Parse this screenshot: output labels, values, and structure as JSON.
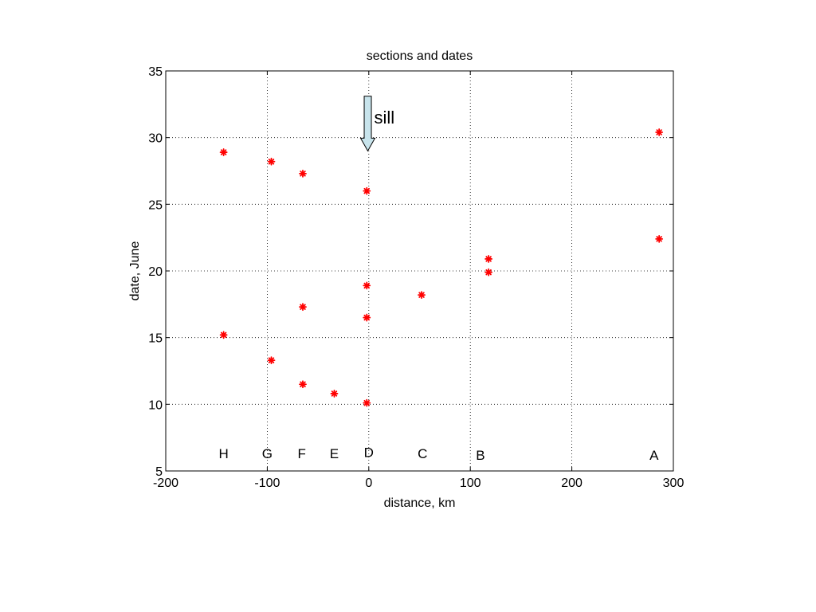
{
  "chart_data": {
    "type": "scatter",
    "title": "sections and dates",
    "xlabel": "distance, km",
    "ylabel": "date, June",
    "xlim": [
      -200,
      300
    ],
    "ylim": [
      5,
      35
    ],
    "x_ticks": [
      -200,
      -100,
      0,
      100,
      200,
      300
    ],
    "y_ticks": [
      5,
      10,
      15,
      20,
      25,
      30,
      35
    ],
    "x_tick_labels": [
      "-200",
      "-100",
      "0",
      "100",
      "200",
      "300"
    ],
    "y_tick_labels": [
      "5",
      "10",
      "15",
      "20",
      "25",
      "30",
      "35"
    ],
    "grid": true,
    "marker": "asterisk",
    "marker_color": "#ff0000",
    "points": [
      {
        "x": -143,
        "y": 28.9
      },
      {
        "x": -143,
        "y": 15.2
      },
      {
        "x": -96,
        "y": 28.2
      },
      {
        "x": -96,
        "y": 13.3
      },
      {
        "x": -65,
        "y": 27.3
      },
      {
        "x": -65,
        "y": 17.3
      },
      {
        "x": -65,
        "y": 11.5
      },
      {
        "x": -34,
        "y": 10.8
      },
      {
        "x": -2,
        "y": 26.0
      },
      {
        "x": -2,
        "y": 18.9
      },
      {
        "x": -2,
        "y": 16.5
      },
      {
        "x": -2,
        "y": 10.1
      },
      {
        "x": 52,
        "y": 18.2
      },
      {
        "x": 118,
        "y": 20.9
      },
      {
        "x": 118,
        "y": 19.9
      },
      {
        "x": 286,
        "y": 30.4
      },
      {
        "x": 286,
        "y": 22.4
      }
    ],
    "section_labels": [
      {
        "text": "H",
        "x": -143,
        "y": 6.3
      },
      {
        "text": "G",
        "x": -100,
        "y": 6.3
      },
      {
        "text": "F",
        "x": -66,
        "y": 6.3
      },
      {
        "text": "E",
        "x": -34,
        "y": 6.3
      },
      {
        "text": "D",
        "x": 0,
        "y": 6.4
      },
      {
        "text": "C",
        "x": 53,
        "y": 6.3
      },
      {
        "text": "B",
        "x": 110,
        "y": 6.2
      },
      {
        "text": "A",
        "x": 281,
        "y": 6.2
      }
    ],
    "annotation": {
      "text": "sill",
      "arrow_x": -1,
      "arrow_y_start": 33.1,
      "arrow_y_end": 29.0,
      "arrow_fill": "#c8e4ec"
    }
  }
}
